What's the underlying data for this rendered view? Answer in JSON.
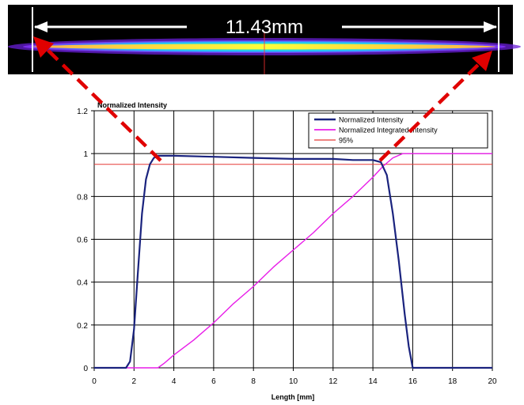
{
  "beam_image": {
    "measurement_label": "11.43mm",
    "colors": {
      "background": "#000000",
      "beam_core": "#fbff3a",
      "beam_mid": "#2fff5f",
      "beam_edge": "#8a2cff",
      "arrow": "#ffffff",
      "dashed_arrow": "#e00000"
    }
  },
  "chart_data": {
    "type": "line",
    "title": "Normalized Intensity",
    "xlabel": "Length [mm]",
    "ylabel": "",
    "xlim": [
      0,
      20
    ],
    "ylim": [
      0,
      1.2
    ],
    "xticks": [
      0,
      2,
      4,
      6,
      8,
      10,
      12,
      14,
      16,
      18,
      20
    ],
    "yticks": [
      0,
      0.2,
      0.4,
      0.6,
      0.8,
      1,
      1.2
    ],
    "xtick_labels": [
      "0",
      "2",
      "4",
      "6",
      "8",
      "10",
      "12",
      "14",
      "16",
      "18",
      "20"
    ],
    "ytick_labels": [
      "0",
      "0.2",
      "0.4",
      "0.6",
      "0.8",
      "1",
      "1.2"
    ],
    "grid": true,
    "legend_position": "top-right",
    "series": [
      {
        "name": "Normalized Intensity",
        "color": "#1a237e",
        "x": [
          0,
          1.6,
          1.8,
          2.0,
          2.2,
          2.4,
          2.6,
          2.8,
          3.0,
          3.2,
          3.4,
          4,
          6,
          8,
          10,
          12,
          13,
          14,
          14.4,
          14.7,
          15.0,
          15.3,
          15.6,
          15.8,
          16.0,
          20
        ],
        "y": [
          0,
          0,
          0.03,
          0.18,
          0.45,
          0.72,
          0.88,
          0.95,
          0.98,
          0.99,
          0.99,
          0.99,
          0.985,
          0.98,
          0.975,
          0.975,
          0.97,
          0.97,
          0.96,
          0.9,
          0.72,
          0.5,
          0.25,
          0.1,
          0,
          0
        ]
      },
      {
        "name": "Normalized Integrated Intensity",
        "color": "#e81de8",
        "x": [
          0,
          3.2,
          3.5,
          4,
          5,
          6,
          7,
          8,
          9,
          10,
          11,
          12,
          13,
          14,
          14.5,
          15,
          15.5,
          20
        ],
        "y": [
          0,
          0,
          0.02,
          0.06,
          0.13,
          0.21,
          0.3,
          0.38,
          0.47,
          0.55,
          0.63,
          0.72,
          0.8,
          0.89,
          0.94,
          0.98,
          1.0,
          1.0
        ]
      },
      {
        "name": "95%",
        "color": "#e53935",
        "x": [
          0,
          20
        ],
        "y": [
          0.95,
          0.95
        ]
      }
    ]
  }
}
